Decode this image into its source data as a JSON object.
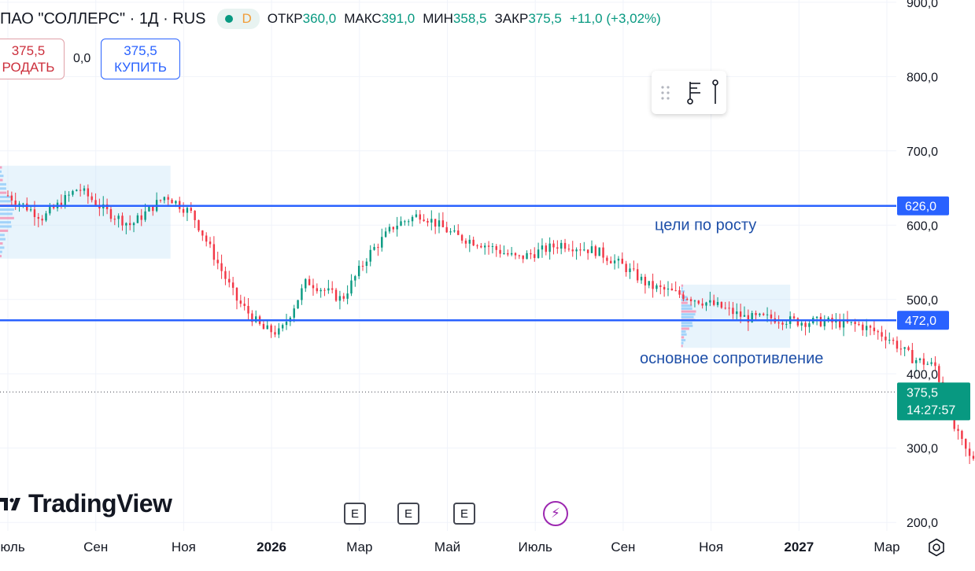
{
  "header": {
    "symbol_title": "ПАО \"СОЛЛЕРС\" · 1Д · RUS",
    "data_mode": "D",
    "open_label": "ОТКР",
    "open_value": "360,0",
    "high_label": "МАКС",
    "high_value": "391,0",
    "low_label": "МИН",
    "low_value": "358,5",
    "close_label": "ЗАКР",
    "close_value": "375,5",
    "change": "+11,0 (+3,02%)"
  },
  "trade": {
    "sell_price": "375,5",
    "sell_label": "РОДАТЬ",
    "spread": "0,0",
    "buy_price": "375,5",
    "buy_label": "КУПИТЬ"
  },
  "branding": {
    "logo_text": "TradingView"
  },
  "colors": {
    "up": "#089981",
    "down": "#f23645",
    "level_line": "#2962ff",
    "annotation_text": "#1e4fa8",
    "volume_profile": "#bde0f7",
    "event_earnings": "#434651",
    "event_dividend": "#9c27b0"
  },
  "icons": {
    "toolbar": [
      "drag-handle-icon",
      "fib-tool-icon",
      "pin-tool-icon"
    ],
    "events": [
      "earnings-icon",
      "earnings-icon",
      "earnings-icon",
      "flash-event-icon"
    ],
    "settings": "gear-icon"
  },
  "chart_data": {
    "type": "candlestick",
    "timeframe": "1D",
    "x_ticks": [
      "Июль",
      "Сен",
      "Ноя",
      "2026",
      "Мар",
      "Май",
      "Июль",
      "Сен",
      "Ноя",
      "2027",
      "Мар"
    ],
    "y_ticks": [
      "200,0",
      "300,0",
      "400,0",
      "500,0",
      "600,0",
      "700,0",
      "800,0",
      "900,0"
    ],
    "ylim": [
      196,
      903
    ],
    "price_path": [
      [
        0,
        640
      ],
      [
        0.4,
        610
      ],
      [
        0.8,
        650
      ],
      [
        1.1,
        620
      ],
      [
        1.4,
        600
      ],
      [
        1.8,
        640
      ],
      [
        2.1,
        615
      ],
      [
        2.6,
        500
      ],
      [
        2.9,
        460
      ],
      [
        3.1,
        455
      ],
      [
        3.4,
        525
      ],
      [
        3.8,
        500
      ],
      [
        4.1,
        560
      ],
      [
        4.4,
        600
      ],
      [
        4.7,
        615
      ],
      [
        5.1,
        585
      ],
      [
        5.4,
        575
      ],
      [
        5.8,
        555
      ],
      [
        6.3,
        575
      ],
      [
        6.7,
        565
      ],
      [
        7.0,
        545
      ],
      [
        7.3,
        518
      ],
      [
        7.7,
        505
      ],
      [
        8.1,
        490
      ],
      [
        8.4,
        475
      ],
      [
        8.7,
        475
      ],
      [
        9.0,
        470
      ],
      [
        9.3,
        470
      ],
      [
        9.7,
        465
      ],
      [
        10.0,
        450
      ],
      [
        10.3,
        420
      ],
      [
        10.55,
        410
      ],
      [
        10.75,
        330
      ],
      [
        10.95,
        285
      ],
      [
        11.2,
        305
      ],
      [
        11.45,
        285
      ],
      [
        11.6,
        285
      ],
      [
        11.75,
        240
      ],
      [
        11.9,
        280
      ],
      [
        12.0,
        392
      ],
      [
        12.1,
        372
      ],
      [
        12.2,
        375.5
      ]
    ],
    "levels": [
      {
        "price": 626.0,
        "label": "626,0",
        "annotation": "цели по росту"
      },
      {
        "price": 472.0,
        "label": "472,0",
        "annotation": "основное сопротивление"
      }
    ],
    "last_price": {
      "price": 375.5,
      "label": "375,5",
      "countdown": "14:27:57"
    },
    "volume_profile_ranges": [
      {
        "x": [
          0,
          1.85
        ],
        "price": [
          555,
          680
        ]
      },
      {
        "x": [
          7.75,
          8.9
        ],
        "price": [
          435,
          520
        ]
      }
    ],
    "event_markers": [
      {
        "x": 7.6,
        "type": "earnings",
        "label": "E"
      },
      {
        "x": 8.75,
        "type": "earnings",
        "label": "E"
      },
      {
        "x": 9.95,
        "type": "earnings",
        "label": "E"
      },
      {
        "x": 11.95,
        "type": "dividend"
      }
    ],
    "grid": true
  }
}
